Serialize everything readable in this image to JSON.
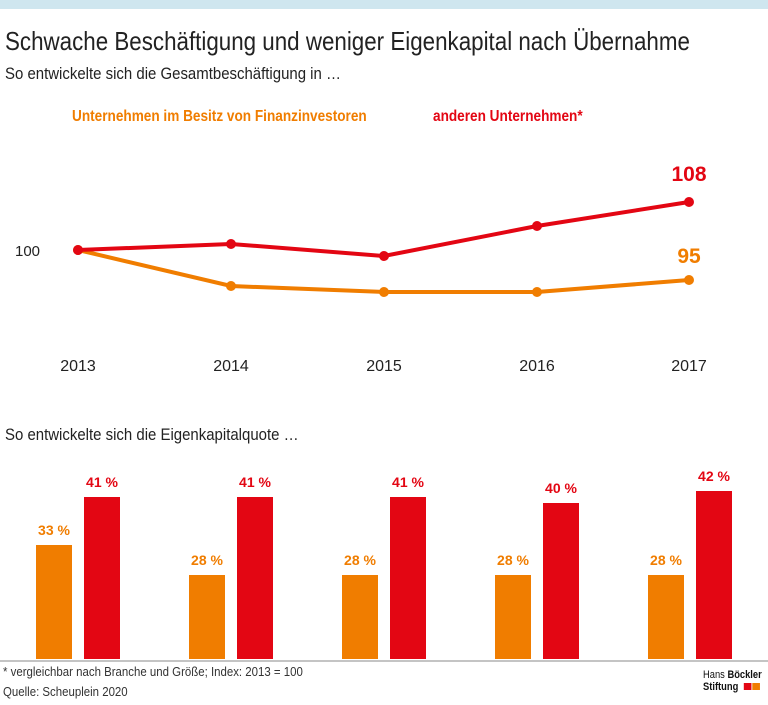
{
  "title": "Schwache Beschäftigung und weniger Eigenkapital nach Übernahme",
  "subtitle1": "So entwickelte sich die Gesamtbeschäftigung in …",
  "subtitle2": "So entwickelte sich die Eigenkapitalquote …",
  "footnote": "* vergleichbar nach Branche und Größe; Index: 2013 = 100",
  "source": "Quelle: Scheuplein 2020",
  "logo": {
    "line1a": "Hans",
    "line1b": "Böckler",
    "line2": "Stiftung"
  },
  "colors": {
    "orange": "#f07d00",
    "red": "#e30613"
  },
  "chart_data": [
    {
      "type": "line",
      "categories": [
        "2013",
        "2014",
        "2015",
        "2016",
        "2017"
      ],
      "ytick": "100",
      "series": [
        {
          "name": "Unternehmen im Besitz von Finanzinvestoren",
          "values": [
            100,
            94,
            93,
            93,
            95
          ],
          "end_label": "95",
          "color": "#f07d00"
        },
        {
          "name": "anderen Unternehmen*",
          "values": [
            100,
            101,
            99,
            104,
            108
          ],
          "end_label": "108",
          "color": "#e30613"
        }
      ]
    },
    {
      "type": "bar",
      "categories": [
        "2013",
        "2014",
        "2015",
        "2016",
        "2017"
      ],
      "series": [
        {
          "values": [
            33,
            28,
            28,
            28,
            28
          ],
          "labels": [
            "33 %",
            "28 %",
            "28 %",
            "28 %",
            "28 %"
          ],
          "color": "#f07d00"
        },
        {
          "values": [
            41,
            41,
            41,
            40,
            42
          ],
          "labels": [
            "41 %",
            "41 %",
            "41 %",
            "40 %",
            "42 %"
          ],
          "color": "#e30613"
        }
      ]
    }
  ]
}
